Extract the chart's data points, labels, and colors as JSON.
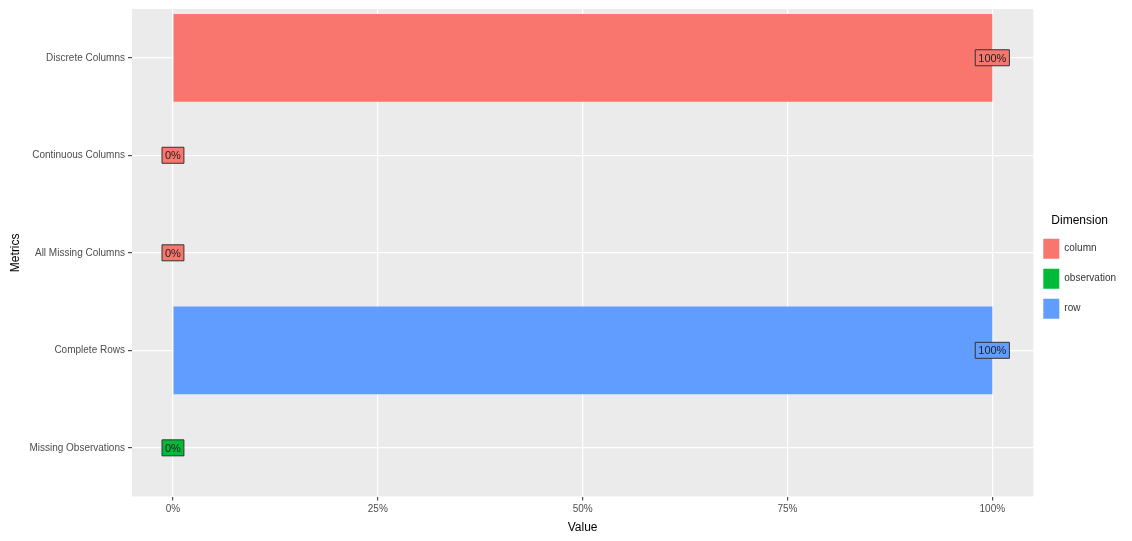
{
  "chart_data": {
    "type": "bar",
    "orientation": "horizontal",
    "xlabel": "Value",
    "ylabel": "Metrics",
    "legend_title": "Dimension",
    "legend": "right",
    "grid": true,
    "categories": [
      "Discrete Columns",
      "Continuous Columns",
      "All Missing Columns",
      "Complete Rows",
      "Missing Observations"
    ],
    "xlim": [
      -5,
      105
    ],
    "xticks": [
      {
        "value": 0,
        "label": "0%"
      },
      {
        "value": 25,
        "label": "25%"
      },
      {
        "value": 50,
        "label": "50%"
      },
      {
        "value": 75,
        "label": "75%"
      },
      {
        "value": 100,
        "label": "100%"
      }
    ],
    "series": [
      {
        "name": "column",
        "color": "#f8766d",
        "values": [
          100,
          0,
          0,
          null,
          null
        ],
        "value_labels": [
          "100%",
          "0%",
          "0%",
          null,
          null
        ]
      },
      {
        "name": "observation",
        "color": "#00ba38",
        "values": [
          null,
          null,
          null,
          null,
          0
        ],
        "value_labels": [
          null,
          null,
          null,
          null,
          "0%"
        ]
      },
      {
        "name": "row",
        "color": "#619cff",
        "values": [
          null,
          null,
          null,
          100,
          null
        ],
        "value_labels": [
          null,
          null,
          null,
          "100%",
          null
        ]
      }
    ]
  }
}
